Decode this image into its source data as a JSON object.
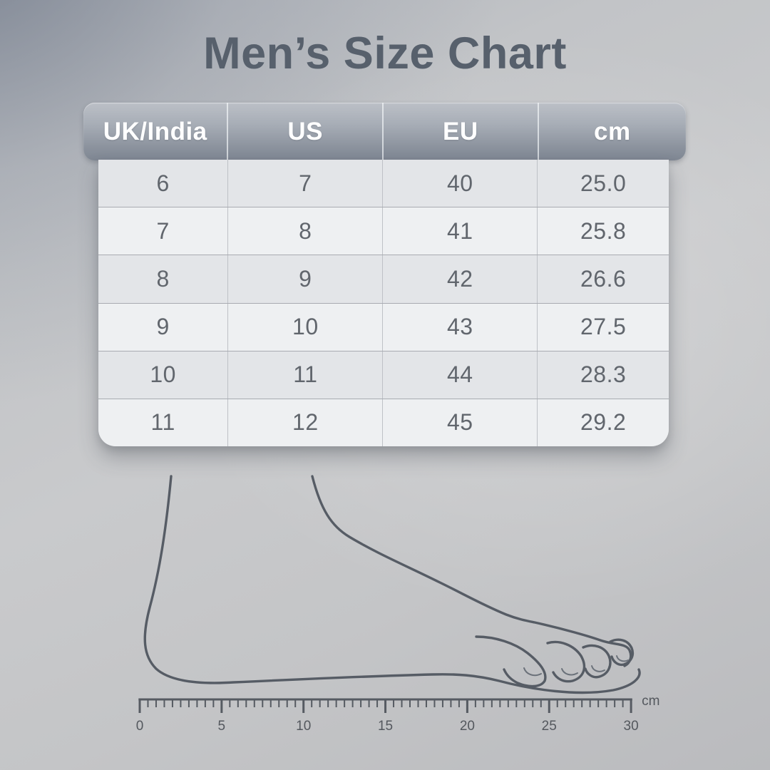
{
  "page": {
    "title": "Men’s Size Chart"
  },
  "table": {
    "columns": [
      "UK/India",
      "US",
      "EU",
      "cm"
    ],
    "rows": [
      [
        "6",
        "7",
        "40",
        "25.0"
      ],
      [
        "7",
        "8",
        "41",
        "25.8"
      ],
      [
        "8",
        "9",
        "42",
        "26.6"
      ],
      [
        "9",
        "10",
        "43",
        "27.5"
      ],
      [
        "10",
        "11",
        "44",
        "28.3"
      ],
      [
        "11",
        "12",
        "45",
        "29.2"
      ]
    ]
  },
  "ruler": {
    "min": 0,
    "max": 30,
    "minor_step": 0.5,
    "major_every": 5,
    "unit": "cm",
    "labels": [
      "0",
      "5",
      "10",
      "15",
      "20",
      "25",
      "30"
    ]
  },
  "illustration": {
    "name": "foot-side-outline"
  },
  "colors": {
    "title_text": "#57606c",
    "header_text": "#ffffff",
    "header_gradient_top": "#bcc0c7",
    "header_gradient_bottom": "#7f8793",
    "row_odd": "#e3e5e8",
    "row_even": "#eef0f2",
    "body_text": "#61666d",
    "line_art": "#565c65",
    "ruler_text": "#54585e",
    "background": "#c6c7c9"
  },
  "chart_data": {
    "type": "table",
    "title": "Men’s Size Chart",
    "columns": [
      "UK/India",
      "US",
      "EU",
      "cm"
    ],
    "rows": [
      [
        6,
        7,
        40,
        25.0
      ],
      [
        7,
        8,
        41,
        25.8
      ],
      [
        8,
        9,
        42,
        26.6
      ],
      [
        9,
        10,
        43,
        27.5
      ],
      [
        10,
        11,
        44,
        28.3
      ],
      [
        11,
        12,
        45,
        29.2
      ]
    ],
    "ruler_axis": {
      "min": 0,
      "max": 30,
      "unit": "cm",
      "tick_labels": [
        0,
        5,
        10,
        15,
        20,
        25,
        30
      ],
      "minor_tick_step": 0.5
    }
  }
}
